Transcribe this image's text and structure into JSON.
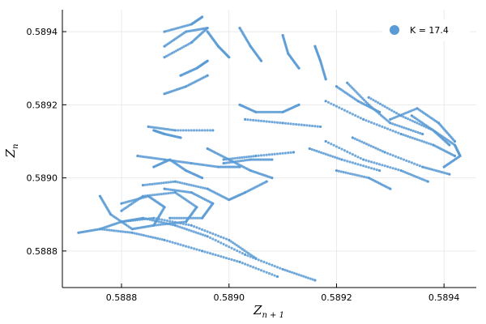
{
  "chart_data": {
    "type": "scatter",
    "xlabel": "Z",
    "xlabel_sub": "n + 1",
    "ylabel": "Z",
    "ylabel_sub": "n",
    "xlim": [
      0.58869,
      0.58946
    ],
    "ylim": [
      0.5887,
      0.58946
    ],
    "x_ticks": [
      0.5888,
      0.589,
      0.5892,
      0.5894
    ],
    "x_tick_labels": [
      "0.5888",
      "0.5890",
      "0.5892",
      "0.5894"
    ],
    "y_ticks": [
      0.5888,
      0.589,
      0.5892,
      0.5894
    ],
    "y_tick_labels": [
      "0.5888",
      "0.5890",
      "0.5892",
      "0.5894"
    ],
    "grid": true,
    "legend": "top-right",
    "marker_color": "#5a9bd5",
    "series": [
      {
        "name": "K = 17.4",
        "color": "#5a9bd5",
        "strands": [
          [
            [
              0.58872,
              0.58885
            ],
            [
              0.58876,
              0.58886
            ],
            [
              0.5888,
              0.58888
            ],
            [
              0.58884,
              0.58889
            ],
            [
              0.5889,
              0.58887
            ],
            [
              0.58896,
              0.58884
            ],
            [
              0.58903,
              0.58879
            ],
            [
              0.5891,
              0.58875
            ],
            [
              0.58916,
              0.58872
            ]
          ],
          [
            [
              0.58876,
              0.58886
            ],
            [
              0.58882,
              0.58885
            ],
            [
              0.58888,
              0.58883
            ],
            [
              0.58895,
              0.5888
            ],
            [
              0.58902,
              0.58877
            ],
            [
              0.58909,
              0.58873
            ]
          ],
          [
            [
              0.5888,
              0.58888
            ],
            [
              0.58886,
              0.58889
            ],
            [
              0.58893,
              0.58887
            ],
            [
              0.589,
              0.58883
            ],
            [
              0.58905,
              0.58878
            ]
          ],
          [
            [
              0.58876,
              0.58895
            ],
            [
              0.58878,
              0.5889
            ],
            [
              0.58882,
              0.58886
            ],
            [
              0.58886,
              0.58887
            ],
            [
              0.58888,
              0.58892
            ],
            [
              0.58885,
              0.58895
            ],
            [
              0.5888,
              0.58893
            ]
          ],
          [
            [
              0.5888,
              0.58891
            ],
            [
              0.58884,
              0.58895
            ],
            [
              0.5889,
              0.58896
            ],
            [
              0.58894,
              0.58892
            ],
            [
              0.58892,
              0.58888
            ],
            [
              0.58886,
              0.58887
            ]
          ],
          [
            [
              0.58888,
              0.58897
            ],
            [
              0.58893,
              0.58896
            ],
            [
              0.58897,
              0.58893
            ],
            [
              0.58895,
              0.58889
            ],
            [
              0.58889,
              0.58889
            ]
          ],
          [
            [
              0.58884,
              0.58898
            ],
            [
              0.5889,
              0.58899
            ],
            [
              0.58896,
              0.58897
            ],
            [
              0.589,
              0.58894
            ],
            [
              0.58903,
              0.58896
            ],
            [
              0.58907,
              0.58899
            ]
          ],
          [
            [
              0.58883,
              0.58906
            ],
            [
              0.58888,
              0.58905
            ],
            [
              0.58893,
              0.58904
            ],
            [
              0.58898,
              0.58903
            ],
            [
              0.58902,
              0.58903
            ]
          ],
          [
            [
              0.58886,
              0.58903
            ],
            [
              0.58889,
              0.58905
            ],
            [
              0.58892,
              0.58902
            ],
            [
              0.58895,
              0.589
            ]
          ],
          [
            [
              0.58896,
              0.58908
            ],
            [
              0.589,
              0.58905
            ],
            [
              0.58904,
              0.58902
            ],
            [
              0.58908,
              0.589
            ]
          ],
          [
            [
              0.58885,
              0.58914
            ],
            [
              0.5889,
              0.58913
            ],
            [
              0.58897,
              0.58913
            ]
          ],
          [
            [
              0.58886,
              0.58913
            ],
            [
              0.58888,
              0.58912
            ],
            [
              0.58891,
              0.58911
            ]
          ],
          [
            [
              0.58899,
              0.58905
            ],
            [
              0.58905,
              0.58906
            ],
            [
              0.58912,
              0.58907
            ]
          ],
          [
            [
              0.58899,
              0.58904
            ],
            [
              0.58904,
              0.58905
            ],
            [
              0.58908,
              0.58905
            ]
          ],
          [
            [
              0.58888,
              0.58923
            ],
            [
              0.58892,
              0.58925
            ],
            [
              0.58896,
              0.58928
            ]
          ],
          [
            [
              0.58891,
              0.58928
            ],
            [
              0.58894,
              0.5893
            ],
            [
              0.58896,
              0.58932
            ]
          ],
          [
            [
              0.58888,
              0.58933
            ],
            [
              0.58893,
              0.58937
            ],
            [
              0.58896,
              0.58941
            ],
            [
              0.58892,
              0.5894
            ],
            [
              0.58888,
              0.58936
            ]
          ],
          [
            [
              0.58888,
              0.5894
            ],
            [
              0.58893,
              0.58942
            ],
            [
              0.58895,
              0.58944
            ]
          ],
          [
            [
              0.58896,
              0.5894
            ],
            [
              0.58898,
              0.58936
            ],
            [
              0.589,
              0.58933
            ]
          ],
          [
            [
              0.58902,
              0.58941
            ],
            [
              0.58904,
              0.58936
            ],
            [
              0.58906,
              0.58932
            ]
          ],
          [
            [
              0.5891,
              0.58939
            ],
            [
              0.58911,
              0.58934
            ],
            [
              0.58913,
              0.5893
            ]
          ],
          [
            [
              0.58916,
              0.58936
            ],
            [
              0.58917,
              0.58932
            ],
            [
              0.58918,
              0.58927
            ]
          ],
          [
            [
              0.58902,
              0.5892
            ],
            [
              0.58905,
              0.58918
            ],
            [
              0.5891,
              0.58918
            ],
            [
              0.58913,
              0.5892
            ]
          ],
          [
            [
              0.58903,
              0.58916
            ],
            [
              0.5891,
              0.58915
            ],
            [
              0.58917,
              0.58914
            ]
          ],
          [
            [
              0.58918,
              0.5891
            ],
            [
              0.58925,
              0.58905
            ],
            [
              0.58932,
              0.58902
            ],
            [
              0.58937,
              0.58899
            ]
          ],
          [
            [
              0.58915,
              0.58908
            ],
            [
              0.58921,
              0.58905
            ],
            [
              0.58928,
              0.58902
            ]
          ],
          [
            [
              0.5892,
              0.58902
            ],
            [
              0.58926,
              0.589
            ],
            [
              0.5893,
              0.58897
            ]
          ],
          [
            [
              0.58923,
              0.58911
            ],
            [
              0.58929,
              0.58907
            ],
            [
              0.58936,
              0.58903
            ],
            [
              0.58941,
              0.58901
            ]
          ],
          [
            [
              0.58918,
              0.58921
            ],
            [
              0.58925,
              0.58916
            ],
            [
              0.58932,
              0.58912
            ],
            [
              0.58938,
              0.58909
            ],
            [
              0.58942,
              0.58906
            ]
          ],
          [
            [
              0.58922,
              0.58926
            ],
            [
              0.58926,
              0.5892
            ],
            [
              0.5893,
              0.58915
            ],
            [
              0.58936,
              0.58912
            ]
          ],
          [
            [
              0.58926,
              0.58922
            ],
            [
              0.58932,
              0.58917
            ],
            [
              0.58938,
              0.58913
            ],
            [
              0.58941,
              0.58909
            ]
          ],
          [
            [
              0.5893,
              0.58916
            ],
            [
              0.58935,
              0.58919
            ],
            [
              0.58939,
              0.58915
            ],
            [
              0.58942,
              0.5891
            ]
          ],
          [
            [
              0.58934,
              0.58917
            ],
            [
              0.58938,
              0.58913
            ],
            [
              0.58942,
              0.58909
            ],
            [
              0.58943,
              0.58906
            ],
            [
              0.5894,
              0.58903
            ]
          ],
          [
            [
              0.5892,
              0.58925
            ],
            [
              0.58924,
              0.58921
            ],
            [
              0.58928,
              0.58918
            ]
          ]
        ]
      }
    ]
  }
}
